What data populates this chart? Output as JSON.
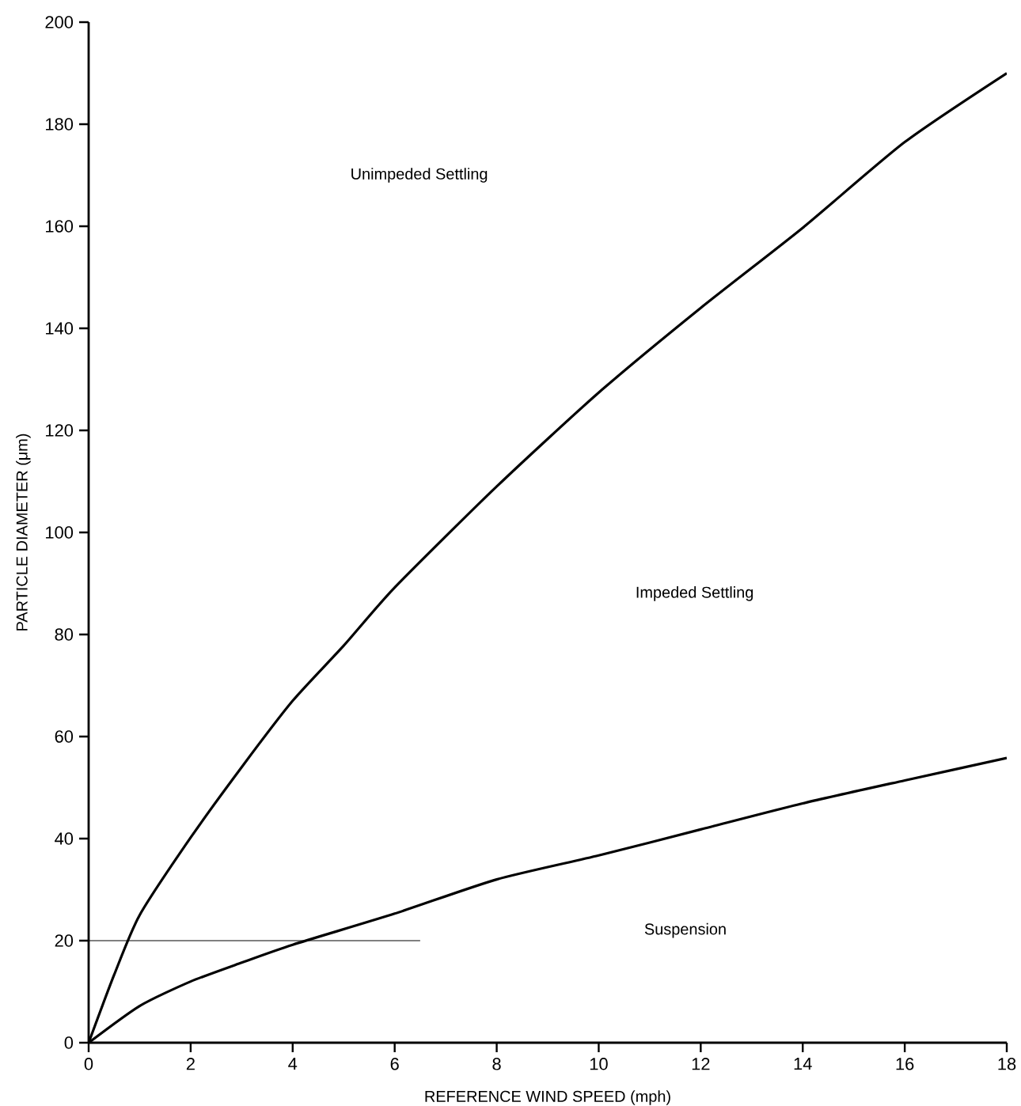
{
  "chart_data": {
    "type": "line",
    "xlabel": "REFERENCE WIND SPEED (mph)",
    "ylabel": "PARTICLE DIAMETER (μm)",
    "xlim": [
      0,
      18
    ],
    "ylim": [
      0,
      200
    ],
    "xticks": [
      0,
      2,
      4,
      6,
      8,
      10,
      12,
      14,
      16,
      18
    ],
    "yticks": [
      0,
      20,
      40,
      60,
      80,
      100,
      120,
      140,
      160,
      180,
      200
    ],
    "grid": false,
    "marker": "none",
    "line_style": "solid",
    "series": [
      {
        "color": "#000000",
        "x": [
          0,
          0.5,
          1,
          2,
          3,
          4,
          5,
          6,
          8,
          10,
          12,
          14,
          16,
          18
        ],
        "values": [
          0,
          13.3,
          25,
          40.2,
          54,
          67,
          77.8,
          89.2,
          109,
          127.4,
          144,
          159.7,
          176.5,
          190
        ]
      },
      {
        "color": "#000000",
        "x": [
          0,
          1,
          2,
          3,
          4,
          6,
          8,
          10,
          12,
          14,
          16,
          18
        ],
        "values": [
          0,
          7.2,
          12,
          15.7,
          19.2,
          25.3,
          32,
          36.7,
          41.8,
          46.9,
          51.4,
          55.8
        ]
      },
      {
        "color": "#000000",
        "x": [
          0,
          6.5
        ],
        "values": [
          20,
          20
        ]
      }
    ],
    "annotations": [
      "Unimpeded Settling",
      "Impeded Settling",
      "Suspension"
    ]
  }
}
